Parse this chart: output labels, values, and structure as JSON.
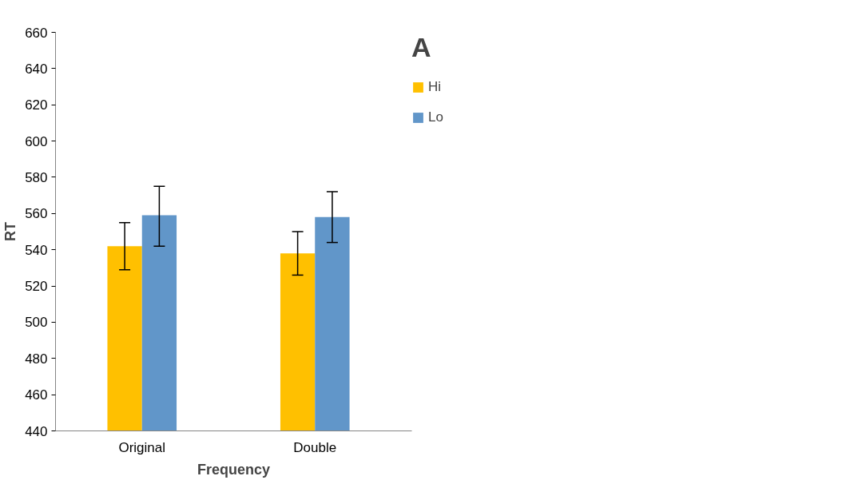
{
  "chart_data": {
    "type": "bar",
    "xlabel": "Frequency",
    "ylabel": "RT",
    "categories": [
      "Original",
      "Double"
    ],
    "series": [
      {
        "name": "Hi",
        "color": "#ffc000",
        "values": [
          542,
          538
        ],
        "errors": [
          [
            529,
            555
          ],
          [
            526,
            550
          ]
        ]
      },
      {
        "name": "Lo",
        "color": "#6196c9",
        "values": [
          559,
          558
        ],
        "errors": [
          [
            542,
            575
          ],
          [
            544,
            572
          ]
        ]
      }
    ],
    "ylim": [
      440,
      660
    ],
    "yticks": [
      440,
      460,
      480,
      500,
      520,
      540,
      560,
      580,
      600,
      620,
      640,
      660
    ],
    "grid": false,
    "legend": "right",
    "annotations": [
      "A"
    ]
  }
}
